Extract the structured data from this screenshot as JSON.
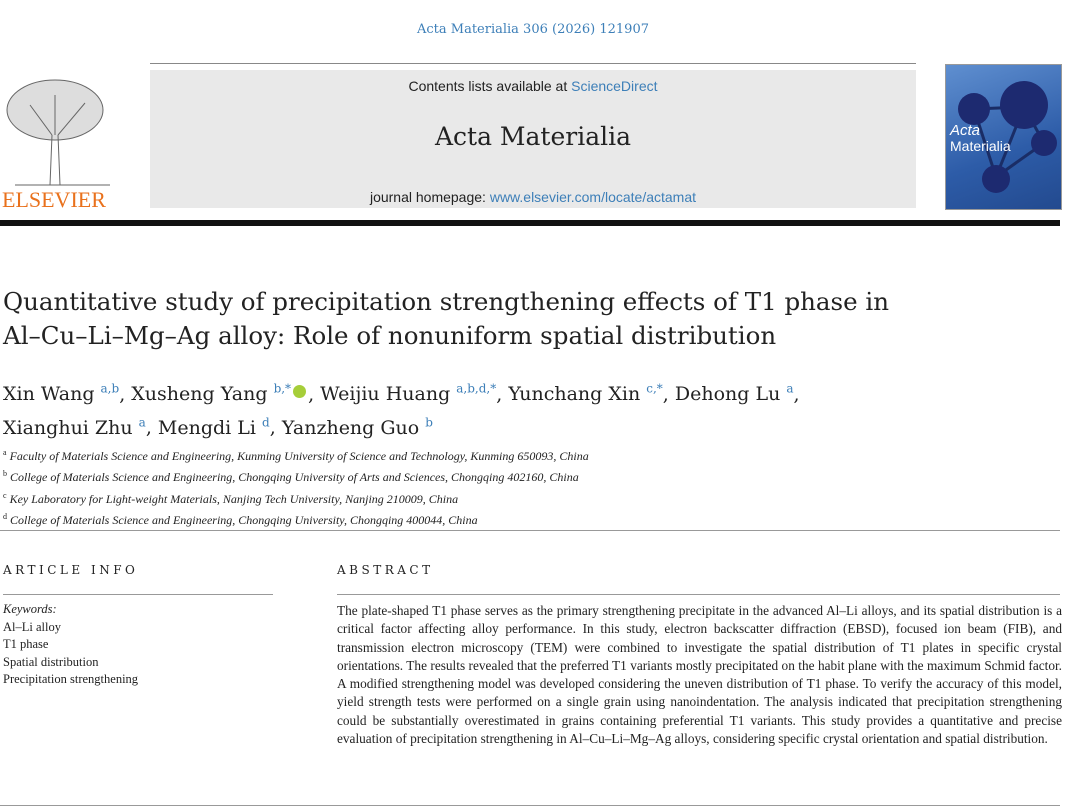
{
  "citation": "Acta Materialia 306 (2026) 121907",
  "header": {
    "contents_prefix": "Contents lists available at ",
    "contents_link": "ScienceDirect",
    "journal_name": "Acta Materialia",
    "homepage_prefix": "journal homepage: ",
    "homepage_link": "www.elsevier.com/locate/actamat",
    "publisher_logo": "ELSEVIER",
    "cover_text": "Acta Materialia",
    "accent_color": "#3d7fb8"
  },
  "title_lines": [
    "Quantitative study of precipitation strengthening effects of T1 phase in",
    "Al–Cu–Li–Mg–Ag alloy: Role of nonuniform spatial distribution"
  ],
  "authors": [
    {
      "name": "Xin Wang",
      "sup": "a,b",
      "sep": ", "
    },
    {
      "name": "Xusheng Yang",
      "sup": "b,*",
      "orcid": true,
      "sep": ", "
    },
    {
      "name": "Weijiu Huang",
      "sup": "a,b,d,*",
      "sep": ", "
    },
    {
      "name": "Yunchang Xin",
      "sup": "c,*",
      "sep": ", "
    },
    {
      "name": "Dehong Lu",
      "sup": "a",
      "sep": ","
    },
    {
      "name": "Xianghui Zhu",
      "sup": "a",
      "sep": ", "
    },
    {
      "name": "Mengdi Li",
      "sup": "d",
      "sep": ", "
    },
    {
      "name": "Yanzheng Guo",
      "sup": "b",
      "sep": ""
    }
  ],
  "affiliations": [
    {
      "key": "a",
      "text": "Faculty of Materials Science and Engineering, Kunming University of Science and Technology, Kunming 650093, China"
    },
    {
      "key": "b",
      "text": "College of Materials Science and Engineering, Chongqing University of Arts and Sciences, Chongqing 402160, China"
    },
    {
      "key": "c",
      "text": "Key Laboratory for Light-weight Materials, Nanjing Tech University, Nanjing 210009, China"
    },
    {
      "key": "d",
      "text": "College of Materials Science and Engineering, Chongqing University, Chongqing 400044, China"
    }
  ],
  "article_info": {
    "heading": "ARTICLE INFO",
    "keywords_label": "Keywords:",
    "keywords": [
      "Al–Li alloy",
      "T1 phase",
      "Spatial distribution",
      "Precipitation strengthening"
    ]
  },
  "abstract": {
    "heading": "ABSTRACT",
    "text": "The plate-shaped T1 phase serves as the primary strengthening precipitate in the advanced Al–Li alloys, and its spatial distribution is a critical factor affecting alloy performance. In this study, electron backscatter diffraction (EBSD), focused ion beam (FIB), and transmission electron microscopy (TEM) were combined to investigate the spatial distribution of T1 plates in specific crystal orientations. The results revealed that the preferred T1 variants mostly precipitated on the habit plane with the maximum Schmid factor. A modified strengthening model was developed considering the uneven distribution of T1 phase. To verify the accuracy of this model, yield strength tests were performed on a single grain using nanoindentation. The analysis indicated that precipitation strengthening could be substantially overestimated in grains containing preferential T1 variants. This study provides a quantitative and precise evaluation of precipitation strengthening in Al–Cu–Li–Mg–Ag alloys, considering specific crystal orientation and spatial distribution."
  }
}
